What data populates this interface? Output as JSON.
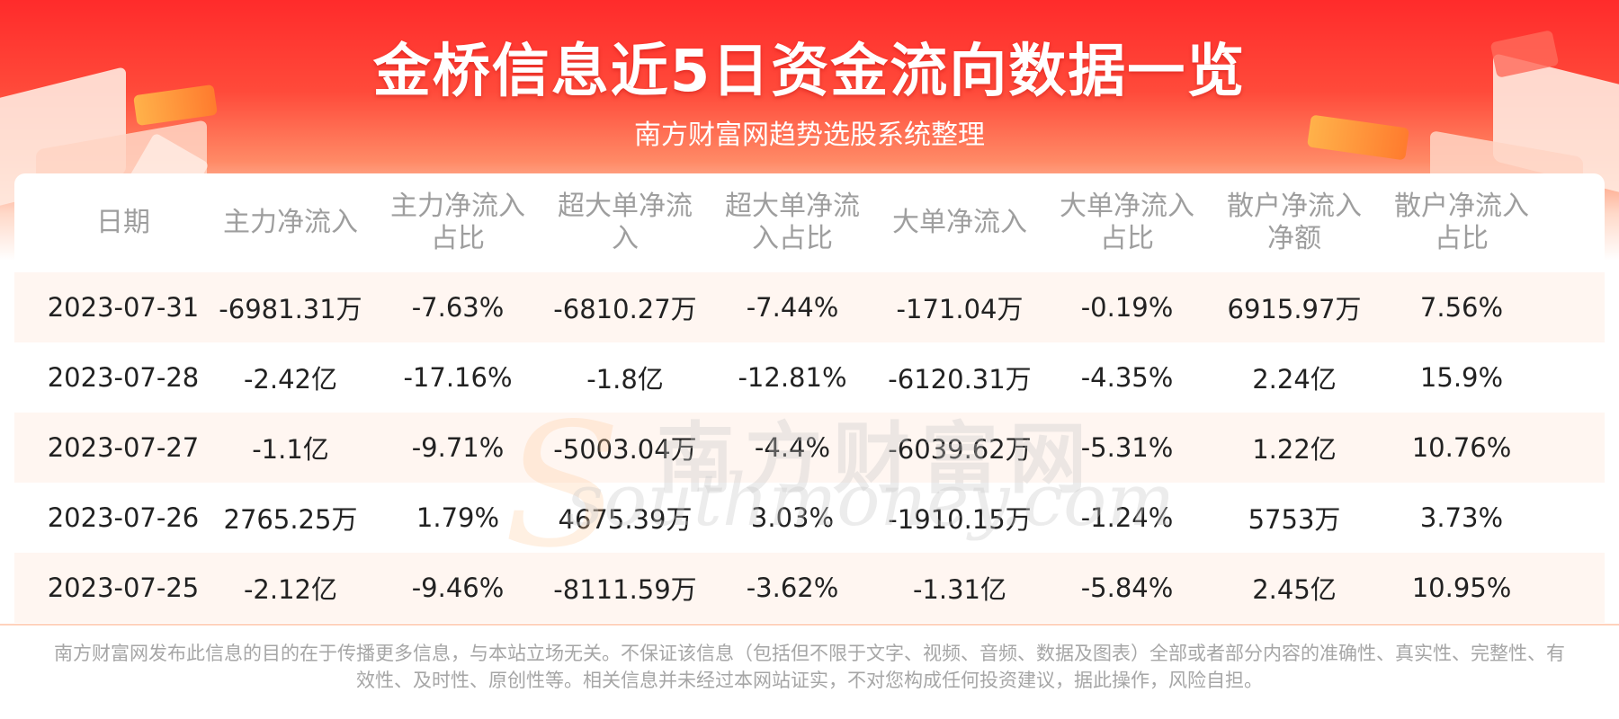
{
  "title": "金桥信息近5日资金流向数据一览",
  "subtitle": "南方财富网趋势选股系统整理",
  "colors": {
    "banner": "#ff2b2b",
    "row_shade": "#fff6f1",
    "header_text": "#9e9e9e"
  },
  "table": {
    "headers": [
      "日期",
      "主力净流入",
      "主力净流入占比",
      "超大单净流入",
      "超大单净流入占比",
      "大单净流入",
      "大单净流入占比",
      "散户净流入净额",
      "散户净流入占比"
    ],
    "rows": [
      [
        "2023-07-31",
        "-6981.31万",
        "-7.63%",
        "-6810.27万",
        "-7.44%",
        "-171.04万",
        "-0.19%",
        "6915.97万",
        "7.56%"
      ],
      [
        "2023-07-28",
        "-2.42亿",
        "-17.16%",
        "-1.8亿",
        "-12.81%",
        "-6120.31万",
        "-4.35%",
        "2.24亿",
        "15.9%"
      ],
      [
        "2023-07-27",
        "-1.1亿",
        "-9.71%",
        "-5003.04万",
        "-4.4%",
        "-6039.62万",
        "-5.31%",
        "1.22亿",
        "10.76%"
      ],
      [
        "2023-07-26",
        "2765.25万",
        "1.79%",
        "4675.39万",
        "3.03%",
        "-1910.15万",
        "-1.24%",
        "5753万",
        "3.73%"
      ],
      [
        "2023-07-25",
        "-2.12亿",
        "-9.46%",
        "-8111.59万",
        "-3.62%",
        "-1.31亿",
        "-5.84%",
        "2.45亿",
        "10.95%"
      ]
    ]
  },
  "watermark": {
    "cn": "南方财富网",
    "en": "southmoney.com"
  },
  "footer": "南方财富网发布此信息的目的在于传播更多信息，与本站立场无关。不保证该信息（包括但不限于文字、视频、音频、数据及图表）全部或者部分内容的准确性、真实性、完整性、有效性、及时性、原创性等。相关信息并未经过本网站证实，不对您构成任何投资建议，据此操作，风险自担。"
}
